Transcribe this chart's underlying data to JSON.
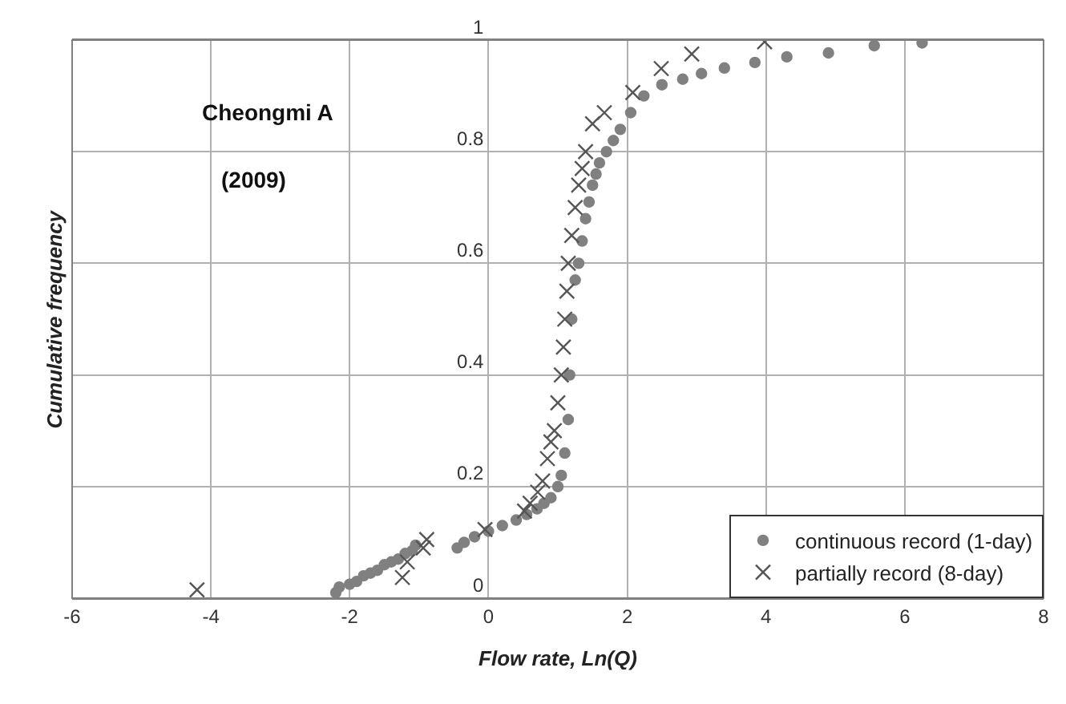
{
  "chart_data": {
    "type": "scatter",
    "xlabel": "Flow rate, Ln(Q)",
    "ylabel": "Cumulative frequency",
    "annotations": [
      "Cheongmi A",
      "(2009)"
    ],
    "xlim": [
      -6,
      8
    ],
    "xticks": [
      -6,
      -4,
      -2,
      0,
      2,
      4,
      6,
      8
    ],
    "ylim": [
      0,
      1
    ],
    "yticks": [
      0,
      0.2,
      0.4,
      0.6,
      0.8,
      1
    ],
    "grid": true,
    "legend": "bottom right",
    "series": [
      {
        "name": "continuous record (1-day)",
        "color": "#808080",
        "marker": "circle",
        "x": [
          -2.2,
          -2.15,
          -2.0,
          -1.9,
          -1.8,
          -1.7,
          -1.6,
          -1.5,
          -1.4,
          -1.3,
          -1.2,
          -1.1,
          -1.05,
          -0.45,
          -0.35,
          -0.2,
          0.0,
          0.2,
          0.4,
          0.55,
          0.7,
          0.8,
          0.9,
          1.0,
          1.05,
          1.1,
          1.15,
          1.17,
          1.2,
          1.25,
          1.3,
          1.35,
          1.4,
          1.45,
          1.5,
          1.55,
          1.6,
          1.7,
          1.8,
          1.9,
          2.05,
          2.24,
          2.5,
          2.8,
          3.07,
          3.4,
          3.84,
          4.3,
          4.9,
          5.56,
          6.25
        ],
        "values": [
          0.01,
          0.02,
          0.025,
          0.03,
          0.04,
          0.045,
          0.05,
          0.06,
          0.065,
          0.07,
          0.08,
          0.085,
          0.095,
          0.09,
          0.1,
          0.11,
          0.12,
          0.13,
          0.14,
          0.15,
          0.16,
          0.17,
          0.18,
          0.2,
          0.22,
          0.26,
          0.32,
          0.4,
          0.5,
          0.57,
          0.6,
          0.64,
          0.68,
          0.71,
          0.74,
          0.76,
          0.78,
          0.8,
          0.82,
          0.84,
          0.87,
          0.9,
          0.92,
          0.93,
          0.94,
          0.95,
          0.96,
          0.97,
          0.977,
          0.99,
          0.995
        ]
      },
      {
        "name": "partially record (8-day)",
        "color": "#555555",
        "marker": "cross",
        "x": [
          -4.2,
          -1.24,
          -1.17,
          -0.94,
          -0.89,
          -0.05,
          0.52,
          0.6,
          0.71,
          0.78,
          0.85,
          0.9,
          0.95,
          1.0,
          1.05,
          1.08,
          1.1,
          1.13,
          1.15,
          1.2,
          1.25,
          1.3,
          1.35,
          1.4,
          1.5,
          1.67,
          2.08,
          2.49,
          2.93,
          3.98
        ],
        "values": [
          0.015,
          0.037,
          0.065,
          0.09,
          0.105,
          0.123,
          0.156,
          0.17,
          0.19,
          0.21,
          0.25,
          0.28,
          0.3,
          0.35,
          0.4,
          0.45,
          0.5,
          0.55,
          0.6,
          0.65,
          0.7,
          0.74,
          0.77,
          0.8,
          0.85,
          0.87,
          0.906,
          0.949,
          0.975,
          0.997
        ]
      }
    ]
  }
}
